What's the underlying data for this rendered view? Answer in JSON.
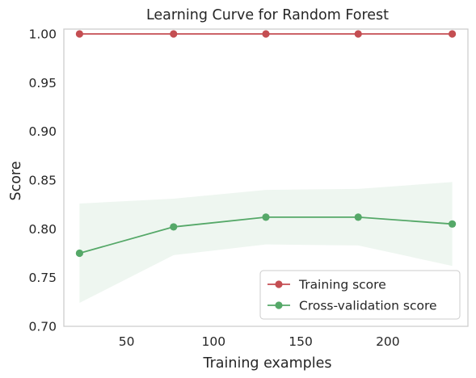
{
  "chart_data": {
    "type": "line",
    "title": "Learning Curve for Random Forest",
    "xlabel": "Training examples",
    "ylabel": "Score",
    "xlim": [
      14,
      246
    ],
    "ylim": [
      0.7,
      1.005
    ],
    "xticks": [
      50,
      100,
      150,
      200
    ],
    "yticks": [
      0.7,
      0.75,
      0.8,
      0.85,
      0.9,
      0.95,
      1.0
    ],
    "ytick_labels": [
      "0.70",
      "0.75",
      "0.80",
      "0.85",
      "0.90",
      "0.95",
      "1.00"
    ],
    "x": [
      23,
      77,
      130,
      183,
      237
    ],
    "grid": false,
    "legend_position": "lower-right",
    "series": [
      {
        "name": "Training score",
        "color": "#c44e52",
        "values": [
          1.0,
          1.0,
          1.0,
          1.0,
          1.0
        ],
        "band_lower": [
          1.0,
          1.0,
          1.0,
          1.0,
          1.0
        ],
        "band_upper": [
          1.0,
          1.0,
          1.0,
          1.0,
          1.0
        ]
      },
      {
        "name": "Cross-validation score",
        "color": "#55a868",
        "values": [
          0.775,
          0.802,
          0.812,
          0.812,
          0.805
        ],
        "band_lower": [
          0.724,
          0.773,
          0.784,
          0.783,
          0.762
        ],
        "band_upper": [
          0.826,
          0.831,
          0.84,
          0.841,
          0.848
        ]
      }
    ]
  }
}
